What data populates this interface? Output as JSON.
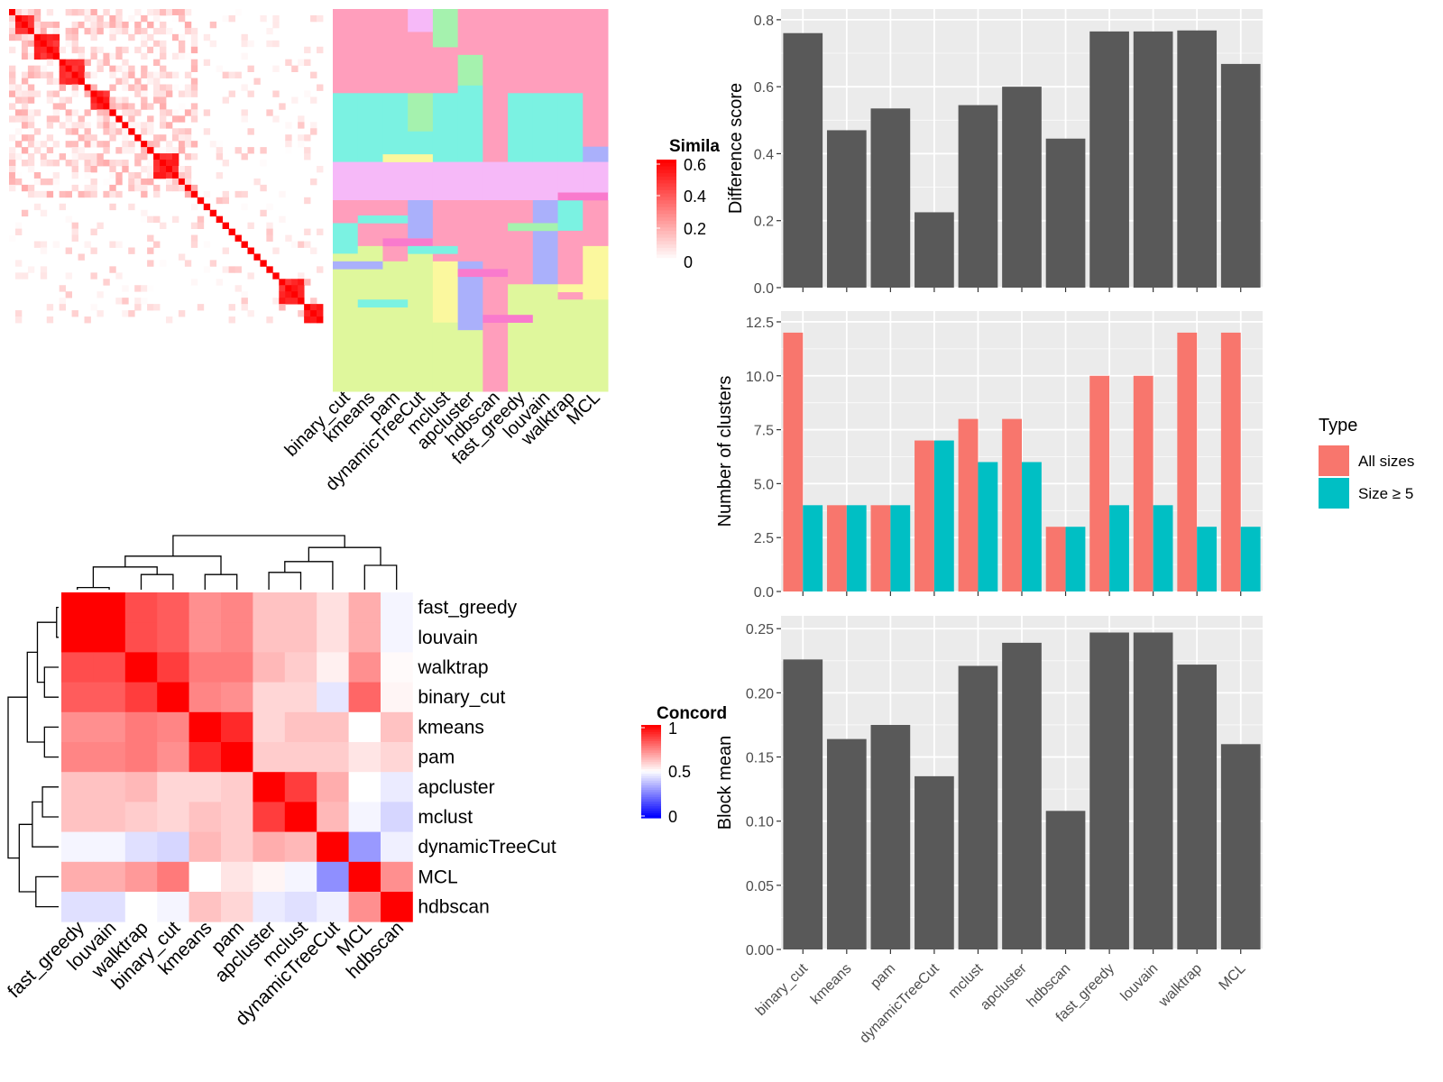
{
  "colors": {
    "panel_bg": "#EBEBEB",
    "grid": "#FFFFFF",
    "bar_dark": "#595959",
    "all_sizes": "#F8766D",
    "size_ge5": "#00BFC4",
    "heat_red": "#FF0000",
    "heat_blue": "#0000FF",
    "cluster_palette": [
      "#FF9EBC",
      "#7BF2E2",
      "#DFF79C",
      "#F6B9F8",
      "#AAB0FB",
      "#A5F2AE",
      "#FBF89E",
      "#F97ACD"
    ]
  },
  "chart_data": [
    {
      "id": "similarity-heatmap",
      "type": "heatmap",
      "legend_title": "Simila",
      "legend_ticks": [
        "0.6",
        "0.4",
        "0.2",
        "0"
      ],
      "n_cells": 50,
      "blocks": [
        [
          1,
          3
        ],
        [
          4,
          7
        ],
        [
          8,
          11
        ],
        [
          13,
          15
        ],
        [
          23,
          26
        ],
        [
          43,
          46
        ],
        [
          47,
          49
        ]
      ],
      "note_values_range": [
        0,
        0.65
      ]
    },
    {
      "id": "cluster-assignment-grid",
      "type": "heatmap",
      "columns": [
        "binary_cut",
        "kmeans",
        "pam",
        "dynamicTreeCut",
        "mclust",
        "apcluster",
        "hdbscan",
        "fast_greedy",
        "louvain",
        "walktrap",
        "MCL"
      ],
      "n_rows": 50
    },
    {
      "id": "concordance-heatmap",
      "type": "heatmap",
      "legend_title": "Concord",
      "legend_ticks": [
        "1",
        "0.5",
        "0"
      ],
      "rows": [
        "fast_greedy",
        "louvain",
        "walktrap",
        "binary_cut",
        "kmeans",
        "pam",
        "apcluster",
        "mclust",
        "dynamicTreeCut",
        "MCL",
        "hdbscan"
      ],
      "columns": [
        "fast_greedy",
        "louvain",
        "walktrap",
        "binary_cut",
        "kmeans",
        "pam",
        "apcluster",
        "mclust",
        "dynamicTreeCut",
        "MCL",
        "hdbscan"
      ],
      "values": [
        [
          1.0,
          1.0,
          0.85,
          0.82,
          0.72,
          0.74,
          0.62,
          0.62,
          0.56,
          0.66,
          0.48
        ],
        [
          1.0,
          1.0,
          0.85,
          0.82,
          0.72,
          0.74,
          0.62,
          0.62,
          0.56,
          0.66,
          0.48
        ],
        [
          0.85,
          0.85,
          1.0,
          0.88,
          0.76,
          0.76,
          0.64,
          0.6,
          0.53,
          0.72,
          0.51
        ],
        [
          0.82,
          0.82,
          0.88,
          1.0,
          0.74,
          0.72,
          0.58,
          0.58,
          0.45,
          0.8,
          0.52
        ],
        [
          0.72,
          0.72,
          0.76,
          0.74,
          1.0,
          0.92,
          0.58,
          0.62,
          0.62,
          0.5,
          0.62
        ],
        [
          0.74,
          0.74,
          0.76,
          0.72,
          0.92,
          1.0,
          0.6,
          0.6,
          0.6,
          0.55,
          0.58
        ],
        [
          0.62,
          0.62,
          0.64,
          0.58,
          0.58,
          0.6,
          1.0,
          0.88,
          0.66,
          0.5,
          0.46
        ],
        [
          0.62,
          0.62,
          0.6,
          0.58,
          0.62,
          0.6,
          0.88,
          1.0,
          0.64,
          0.48,
          0.42
        ],
        [
          0.48,
          0.48,
          0.44,
          0.42,
          0.64,
          0.6,
          0.66,
          0.64,
          1.0,
          0.3,
          0.47
        ],
        [
          0.66,
          0.66,
          0.7,
          0.76,
          0.5,
          0.55,
          0.52,
          0.48,
          0.28,
          1.0,
          0.72
        ],
        [
          0.44,
          0.44,
          0.5,
          0.48,
          0.62,
          0.58,
          0.46,
          0.44,
          0.47,
          0.72,
          1.0
        ]
      ]
    },
    {
      "id": "difference-score",
      "type": "bar",
      "categories": [
        "binary_cut",
        "kmeans",
        "pam",
        "dynamicTreeCut",
        "mclust",
        "apcluster",
        "hdbscan",
        "fast_greedy",
        "louvain",
        "walktrap",
        "MCL"
      ],
      "values": [
        0.76,
        0.47,
        0.535,
        0.225,
        0.545,
        0.6,
        0.445,
        0.765,
        0.765,
        0.768,
        0.668
      ],
      "ylabel": "Difference score",
      "ylim": [
        0,
        0.8
      ],
      "yticks": [
        "0.0",
        "0.2",
        "0.4",
        "0.6",
        "0.8"
      ],
      "grid": true
    },
    {
      "id": "number-of-clusters",
      "type": "bar",
      "categories": [
        "binary_cut",
        "kmeans",
        "pam",
        "dynamicTreeCut",
        "mclust",
        "apcluster",
        "hdbscan",
        "fast_greedy",
        "louvain",
        "walktrap",
        "MCL"
      ],
      "series": [
        {
          "name": "All sizes",
          "values": [
            12,
            4,
            4,
            7,
            8,
            8,
            3,
            10,
            10,
            12,
            12
          ]
        },
        {
          "name": "Size ≥ 5",
          "values": [
            4,
            4,
            4,
            7,
            6,
            6,
            3,
            4,
            4,
            3,
            3
          ]
        }
      ],
      "ylabel": "Number of clusters",
      "ylim": [
        0,
        12.5
      ],
      "yticks": [
        "0.0",
        "2.5",
        "5.0",
        "7.5",
        "10.0",
        "12.5"
      ],
      "legend_title": "Type",
      "legend_position": "right",
      "grid": true
    },
    {
      "id": "block-mean",
      "type": "bar",
      "categories": [
        "binary_cut",
        "kmeans",
        "pam",
        "dynamicTreeCut",
        "mclust",
        "apcluster",
        "hdbscan",
        "fast_greedy",
        "louvain",
        "walktrap",
        "MCL"
      ],
      "values": [
        0.226,
        0.164,
        0.175,
        0.135,
        0.221,
        0.239,
        0.108,
        0.247,
        0.247,
        0.222,
        0.16
      ],
      "ylabel": "Block mean",
      "ylim": [
        0,
        0.25
      ],
      "yticks": [
        "0.00",
        "0.05",
        "0.10",
        "0.15",
        "0.20",
        "0.25"
      ],
      "grid": true
    }
  ]
}
